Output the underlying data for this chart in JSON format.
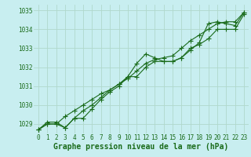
{
  "title": "Graphe pression niveau de la mer (hPa)",
  "background_color": "#c8eef0",
  "grid_color": "#b0d8cc",
  "line_color": "#1a6b1a",
  "xlabel_color": "#1a6b1a",
  "x_hours": [
    0,
    1,
    2,
    3,
    4,
    5,
    6,
    7,
    8,
    9,
    10,
    11,
    12,
    13,
    14,
    15,
    16,
    17,
    18,
    19,
    20,
    21,
    22,
    23
  ],
  "series": [
    [
      1028.7,
      1029.0,
      1029.0,
      1028.8,
      1029.3,
      1029.3,
      1029.8,
      1030.3,
      1030.7,
      1031.0,
      1031.5,
      1031.5,
      1032.0,
      1032.3,
      1032.3,
      1032.3,
      1032.5,
      1033.0,
      1033.2,
      1033.5,
      1034.0,
      1034.0,
      1034.0,
      1034.8
    ],
    [
      1028.7,
      1029.0,
      1029.0,
      1029.4,
      1029.7,
      1030.0,
      1030.3,
      1030.6,
      1030.8,
      1031.1,
      1031.5,
      1032.2,
      1032.7,
      1032.5,
      1032.3,
      1032.3,
      1032.5,
      1032.9,
      1033.3,
      1034.3,
      1034.4,
      1034.3,
      1034.2,
      1034.9
    ],
    [
      1028.7,
      1029.1,
      1029.1,
      1028.8,
      1029.3,
      1029.7,
      1030.0,
      1030.4,
      1030.8,
      1031.1,
      1031.4,
      1031.8,
      1032.2,
      1032.4,
      1032.5,
      1032.6,
      1033.0,
      1033.4,
      1033.7,
      1034.0,
      1034.3,
      1034.4,
      1034.4,
      1034.9
    ]
  ],
  "ylim": [
    1028.5,
    1035.3
  ],
  "yticks": [
    1029,
    1030,
    1031,
    1032,
    1033,
    1034,
    1035
  ],
  "marker": "+",
  "marker_size": 4,
  "linewidth": 0.8,
  "title_fontsize": 7,
  "tick_fontsize": 5.5,
  "figwidth": 3.2,
  "figheight": 2.0,
  "dpi": 100
}
